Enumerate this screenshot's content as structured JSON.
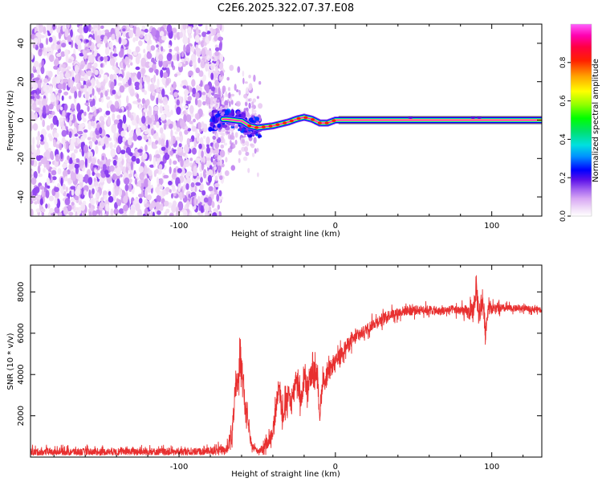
{
  "title": "C2E6.2025.322.07.37.E08",
  "chart_data": [
    {
      "type": "heatmap",
      "name": "spectrogram",
      "xlabel": "Height of straight line (km)",
      "ylabel": "Frequency (Hz)",
      "xlim": [
        -195,
        132
      ],
      "ylim": [
        -50,
        50
      ],
      "x_ticks": [
        -100,
        0,
        100
      ],
      "x_tick_labels": [
        "-100",
        "0",
        "100"
      ],
      "y_ticks": [
        -40,
        -20,
        0,
        20,
        40
      ],
      "y_tick_labels": [
        "-40",
        "-20",
        "0",
        "20",
        "40"
      ],
      "noise_region_x": [
        -195,
        -75
      ],
      "transition_region_x": [
        -78,
        -48
      ],
      "carrier_track": {
        "x": [
          -80,
          -70,
          -60,
          -55,
          -50,
          -45,
          -40,
          -35,
          -30,
          -25,
          -20,
          -15,
          -10,
          -5,
          0,
          20,
          50,
          80,
          132
        ],
        "freq": [
          0,
          0.5,
          -0.5,
          -3,
          -4,
          -3.5,
          -3,
          -2,
          -1,
          0.5,
          1.5,
          0.5,
          -1.5,
          -1.5,
          0,
          0,
          0,
          0,
          0
        ],
        "amplitude": [
          0.2,
          0.25,
          0.3,
          0.7,
          0.85,
          0.9,
          0.88,
          0.85,
          0.88,
          0.9,
          0.92,
          0.9,
          0.85,
          0.9,
          1.0,
          1.0,
          1.0,
          1.0,
          1.0
        ]
      },
      "colorbar": {
        "label": "Normalized spectral amplitude",
        "range": [
          0,
          1
        ],
        "ticks": [
          0.0,
          0.2,
          0.4,
          0.6,
          0.8
        ],
        "tick_labels": [
          "0.0",
          "0.2",
          "0.4",
          "0.6",
          "0.8"
        ],
        "colormap": [
          "#ffffff",
          "#f4e6f8",
          "#e6c4f2",
          "#c88ef0",
          "#8a3cf0",
          "#5a10e8",
          "#0000ff",
          "#0090ff",
          "#00e0e0",
          "#00e080",
          "#00ff00",
          "#c0ff00",
          "#ffff00",
          "#ffa000",
          "#ff4000",
          "#ff0000",
          "#ff00a0",
          "#ff00ff"
        ]
      }
    },
    {
      "type": "line",
      "name": "snr",
      "xlabel": "Height of straight line (km)",
      "ylabel": "SNR (10 * v/v)",
      "xlim": [
        -195,
        132
      ],
      "ylim": [
        0,
        9300
      ],
      "x_ticks": [
        -100,
        0,
        100
      ],
      "x_tick_labels": [
        "-100",
        "0",
        "100"
      ],
      "y_ticks": [
        2000,
        4000,
        6000,
        8000
      ],
      "y_tick_labels": [
        "2000",
        "4000",
        "6000",
        "8000"
      ],
      "series": [
        {
          "name": "SNR",
          "color": "#e83030",
          "x": [
            -195,
            -150,
            -100,
            -80,
            -75,
            -70,
            -66,
            -64,
            -62,
            -60,
            -58,
            -56,
            -54,
            -50,
            -46,
            -42,
            -40,
            -38,
            -36,
            -34,
            -30,
            -28,
            -25,
            -22,
            -20,
            -18,
            -15,
            -12,
            -10,
            -8,
            -6,
            -4,
            0,
            5,
            10,
            15,
            20,
            25,
            30,
            35,
            40,
            45,
            50,
            55,
            60,
            65,
            70,
            75,
            80,
            85,
            88,
            90,
            92,
            94,
            96,
            98,
            100,
            105,
            110,
            120,
            132
          ],
          "y": [
            250,
            260,
            260,
            280,
            350,
            300,
            1200,
            3000,
            4000,
            5000,
            2500,
            1800,
            600,
            300,
            400,
            900,
            1300,
            2300,
            3800,
            2000,
            3000,
            2600,
            4000,
            2700,
            3800,
            3300,
            4100,
            4200,
            2100,
            3800,
            3600,
            4200,
            4600,
            5200,
            5600,
            5900,
            6200,
            6500,
            6700,
            6900,
            7000,
            7100,
            7100,
            7150,
            7150,
            7050,
            7100,
            7150,
            7100,
            7000,
            7000,
            8200,
            6800,
            7800,
            6100,
            7400,
            7200,
            7200,
            7200,
            7200,
            7150
          ],
          "noise_amplitude": [
            250,
            250,
            250,
            250,
            300,
            300,
            700,
            900,
            1100,
            1100,
            900,
            500,
            250,
            200,
            300,
            500,
            600,
            800,
            800,
            800,
            800,
            800,
            800,
            800,
            800,
            800,
            800,
            700,
            800,
            600,
            600,
            600,
            500,
            500,
            500,
            400,
            400,
            400,
            400,
            350,
            350,
            350,
            350,
            300,
            300,
            300,
            300,
            300,
            350,
            500,
            700,
            1000,
            1000,
            900,
            700,
            500,
            350,
            300,
            250,
            200,
            200
          ]
        }
      ]
    }
  ]
}
